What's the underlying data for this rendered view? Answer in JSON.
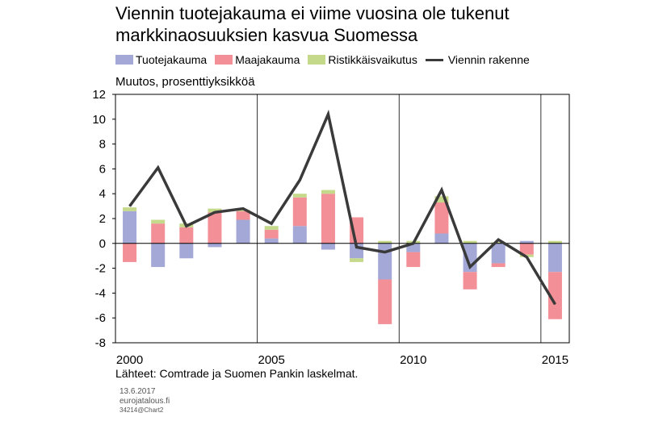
{
  "title_line1": "Viennin tuotejakauma ei viime vuosina ole tukenut",
  "title_line2": "markkinaosuuksien kasvua Suomessa",
  "legend": {
    "s1": "Tuotejakauma",
    "s2": "Maajakauma",
    "s3": "Ristikkäisvaikutus",
    "s4": "Viennin rakenne"
  },
  "colors": {
    "s1": "#a4a8d6",
    "s2": "#f28f97",
    "s3": "#c4d98a",
    "s4": "#3a3a3a"
  },
  "unit_label": "Muutos, prosenttiyksikköä",
  "source": "Lähteet: Comtrade ja Suomen Pankin laskelmat.",
  "date": "13.6.2017",
  "site": "eurojatalous.fi",
  "code": "34214@Chart2",
  "chart_data": {
    "type": "bar",
    "stacked": true,
    "categories": [
      2000,
      2001,
      2002,
      2003,
      2004,
      2005,
      2006,
      2007,
      2008,
      2009,
      2010,
      2011,
      2012,
      2013,
      2014,
      2015
    ],
    "x_tick_labels": [
      "2000",
      "2005",
      "2010",
      "2015"
    ],
    "ylim": [
      -8,
      12
    ],
    "y_ticks": [
      -8,
      -6,
      -4,
      -2,
      0,
      2,
      4,
      6,
      8,
      10,
      12
    ],
    "grid": "vertical lines at 2005, 2010, 2015",
    "series": [
      {
        "name": "Tuotejakauma",
        "type": "bar",
        "values": [
          2.6,
          -1.9,
          -1.2,
          -0.3,
          1.9,
          0.4,
          1.4,
          -0.5,
          -1.2,
          -2.9,
          -0.7,
          0.8,
          -2.3,
          -1.6,
          0.2,
          -2.3
        ]
      },
      {
        "name": "Maajakauma",
        "type": "bar",
        "values": [
          -1.5,
          1.6,
          1.3,
          2.5,
          0.7,
          0.7,
          2.3,
          4.0,
          2.1,
          -3.6,
          -1.2,
          2.5,
          -1.4,
          -0.3,
          -0.9,
          -3.8
        ]
      },
      {
        "name": "Ristikkäisvaikutus",
        "type": "bar",
        "values": [
          0.3,
          0.3,
          0.3,
          0.3,
          0.1,
          0.3,
          0.3,
          0.3,
          -0.3,
          0.2,
          0.2,
          0.5,
          0.2,
          0.1,
          -0.2,
          0.2
        ]
      },
      {
        "name": "Viennin rakenne",
        "type": "line",
        "values": [
          3.0,
          6.1,
          1.4,
          2.5,
          2.8,
          1.6,
          5.1,
          10.4,
          -0.3,
          -0.7,
          0.0,
          4.3,
          -1.9,
          0.3,
          -1.1,
          -4.9
        ]
      }
    ]
  }
}
